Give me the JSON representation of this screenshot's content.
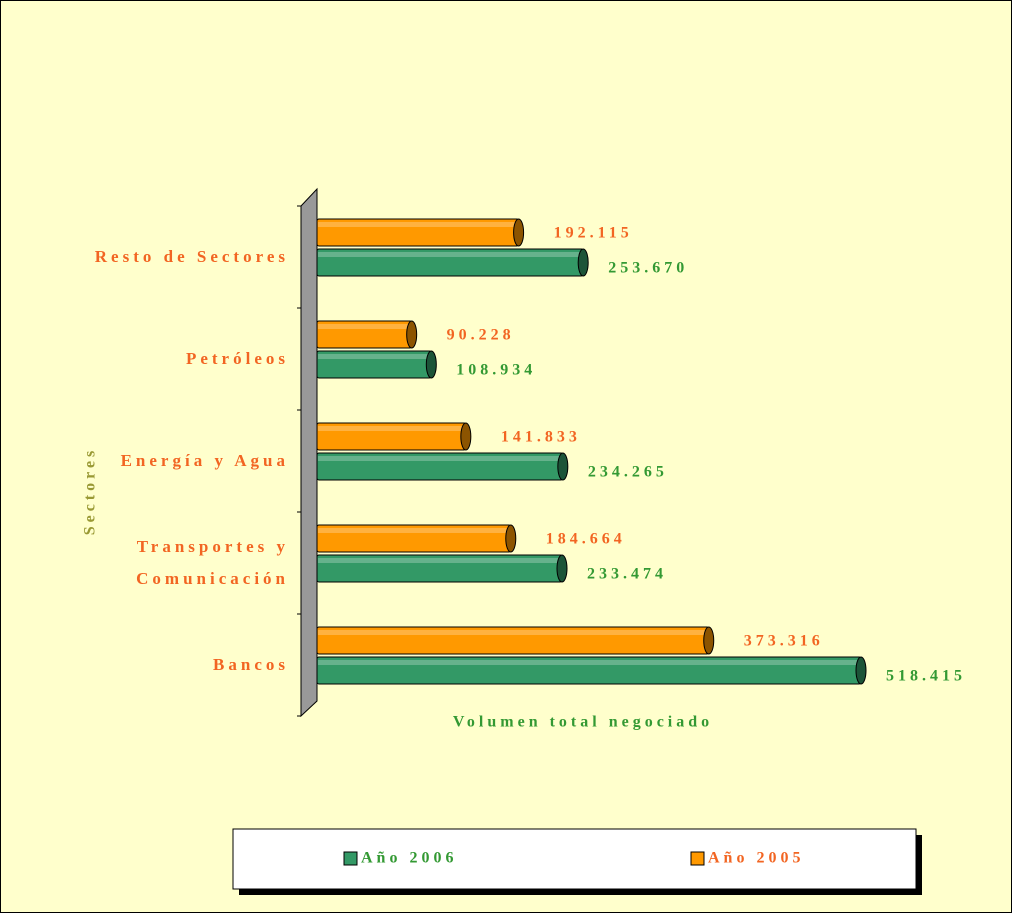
{
  "chart_data": {
    "type": "bar",
    "orientation": "horizontal",
    "categories": [
      "Resto de Sectores",
      "Petróleos",
      "Energía y Agua",
      "Transportes y Comunicación",
      "Bancos"
    ],
    "series": [
      {
        "name": "Año 2006",
        "color": "#339966",
        "values": [
          253670,
          108934,
          234265,
          233474,
          518415
        ],
        "value_labels": [
          "253.670",
          "108.934",
          "234.265",
          "233.474",
          "518.415"
        ]
      },
      {
        "name": "Año 2005",
        "color": "#ff9900",
        "values": [
          192115,
          90228,
          141833,
          184664,
          373316
        ],
        "value_labels": [
          "192.115",
          "90.228",
          "141.833",
          "184.664",
          "373.316"
        ]
      }
    ],
    "x_label": "Volumen total negociado",
    "y_label": "Sectores",
    "legend": "bottom"
  }
}
